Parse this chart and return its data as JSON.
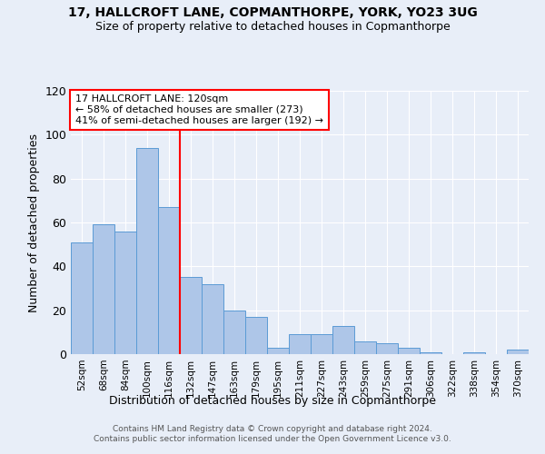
{
  "title1": "17, HALLCROFT LANE, COPMANTHORPE, YORK, YO23 3UG",
  "title2": "Size of property relative to detached houses in Copmanthorpe",
  "xlabel": "Distribution of detached houses by size in Copmanthorpe",
  "ylabel": "Number of detached properties",
  "categories": [
    "52sqm",
    "68sqm",
    "84sqm",
    "100sqm",
    "116sqm",
    "132sqm",
    "147sqm",
    "163sqm",
    "179sqm",
    "195sqm",
    "211sqm",
    "227sqm",
    "243sqm",
    "259sqm",
    "275sqm",
    "291sqm",
    "306sqm",
    "322sqm",
    "338sqm",
    "354sqm",
    "370sqm"
  ],
  "values": [
    51,
    59,
    56,
    94,
    67,
    35,
    32,
    20,
    17,
    3,
    9,
    9,
    13,
    6,
    5,
    3,
    1,
    0,
    1,
    0,
    2
  ],
  "bar_color": "#aec6e8",
  "bar_edge_color": "#5b9bd5",
  "background_color": "#e8eef8",
  "vline_x": 4.5,
  "vline_color": "red",
  "annotation_line1": "17 HALLCROFT LANE: 120sqm",
  "annotation_line2": "← 58% of detached houses are smaller (273)",
  "annotation_line3": "41% of semi-detached houses are larger (192) →",
  "annotation_box_color": "white",
  "annotation_box_edge": "red",
  "footer1": "Contains HM Land Registry data © Crown copyright and database right 2024.",
  "footer2": "Contains public sector information licensed under the Open Government Licence v3.0.",
  "ylim": [
    0,
    120
  ],
  "yticks": [
    0,
    20,
    40,
    60,
    80,
    100,
    120
  ]
}
